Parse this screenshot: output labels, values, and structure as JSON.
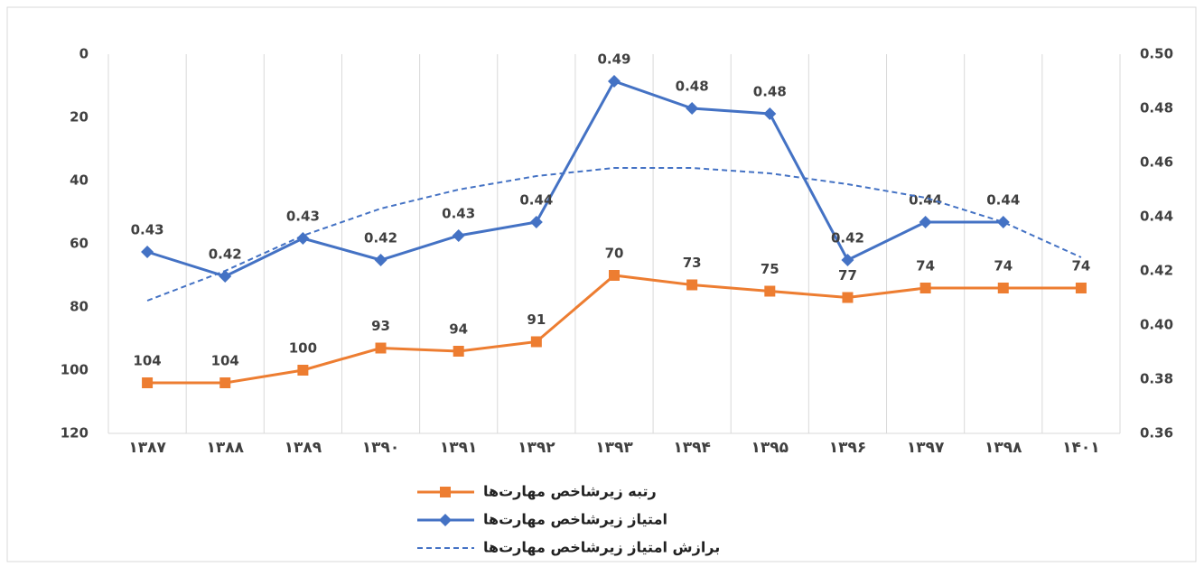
{
  "chart_data": {
    "type": "line",
    "categories": [
      "۱۳۸۷",
      "۱۳۸۸",
      "۱۳۸۹",
      "۱۳۹۰",
      "۱۳۹۱",
      "۱۳۹۲",
      "۱۳۹۳",
      "۱۳۹۴",
      "۱۳۹۵",
      "۱۳۹۶",
      "۱۳۹۷",
      "۱۳۹۸",
      "۱۴۰۱"
    ],
    "ylim": [
      0,
      120
    ],
    "y_reversed": true,
    "yticks": [
      0,
      20,
      40,
      60,
      80,
      100,
      120
    ],
    "y2lim": [
      0.36,
      0.5
    ],
    "y2ticks": [
      0.36,
      0.38,
      {
        "value": 0.4,
        "label": "0.40"
      },
      0.42,
      0.44,
      0.46,
      0.48,
      {
        "value": 0.5,
        "label": "0.50"
      }
    ],
    "grid": "vertical",
    "series": [
      {
        "name": "رتبه زیرشاخص مهارت‌ها",
        "color": "#ed7d31",
        "marker": "square",
        "line_style": "solid",
        "values": [
          104,
          104,
          100,
          93,
          94,
          91,
          70,
          73,
          75,
          77,
          74,
          74,
          74
        ]
      },
      {
        "name": "امتیاز زیرشاخص مهارت‌ها",
        "color": "#4472c4",
        "marker": "diamond",
        "line_style": "solid",
        "axis": "y2",
        "values": [
          0.427,
          0.418,
          0.432,
          0.424,
          0.433,
          0.438,
          0.49,
          0.48,
          0.478,
          0.424,
          0.438,
          0.438,
          null
        ],
        "value_labels": [
          "0.43",
          "0.42",
          "0.43",
          "0.42",
          "0.43",
          "0.44",
          "0.49",
          "0.48",
          "0.48",
          "0.42",
          "0.44",
          "0.44",
          null
        ]
      },
      {
        "name": "برازش امتیاز زیرشاخص مهارت‌ها",
        "color": "#4472c4",
        "marker": "none",
        "line_style": "dashed",
        "axis": "y2",
        "values": [
          0.409,
          0.42,
          0.433,
          0.443,
          0.45,
          0.455,
          0.458,
          0.458,
          0.456,
          0.452,
          0.447,
          0.438,
          0.425
        ]
      }
    ]
  }
}
